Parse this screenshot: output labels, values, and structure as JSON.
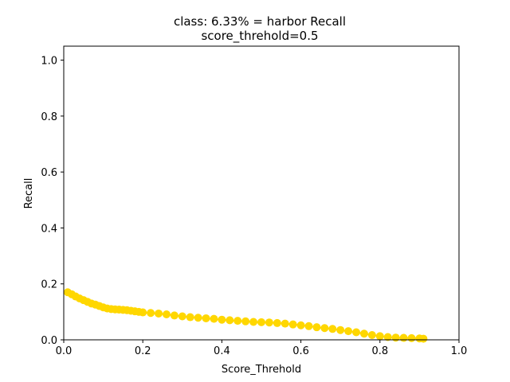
{
  "chart_data": {
    "type": "line",
    "title": "class: 6.33% = harbor Recall",
    "subtitle": "score_threhold=0.5",
    "xlabel": "Score_Threhold",
    "ylabel": "Recall",
    "xlim": [
      0.0,
      1.0
    ],
    "ylim": [
      0.0,
      1.05
    ],
    "xticks": [
      "0.0",
      "0.2",
      "0.4",
      "0.6",
      "0.8",
      "1.0"
    ],
    "yticks": [
      "0.0",
      "0.2",
      "0.4",
      "0.6",
      "0.8",
      "1.0"
    ],
    "grid": false,
    "legend": "none",
    "series_color": "#ffd700",
    "series": [
      {
        "x": [
          0.01,
          0.02,
          0.03,
          0.04,
          0.05,
          0.06,
          0.07,
          0.08,
          0.09,
          0.1,
          0.11,
          0.12,
          0.13,
          0.14,
          0.15,
          0.16,
          0.17,
          0.18,
          0.19,
          0.2,
          0.22,
          0.24,
          0.26,
          0.28,
          0.3,
          0.32,
          0.34,
          0.36,
          0.38,
          0.4,
          0.42,
          0.44,
          0.46,
          0.48,
          0.5,
          0.52,
          0.54,
          0.56,
          0.58,
          0.6,
          0.62,
          0.64,
          0.66,
          0.68,
          0.7,
          0.72,
          0.74,
          0.76,
          0.78,
          0.8,
          0.82,
          0.84,
          0.86,
          0.88,
          0.9,
          0.91
        ],
        "y": [
          0.17,
          0.163,
          0.155,
          0.148,
          0.142,
          0.136,
          0.13,
          0.126,
          0.121,
          0.116,
          0.112,
          0.11,
          0.109,
          0.108,
          0.107,
          0.106,
          0.104,
          0.102,
          0.1,
          0.098,
          0.096,
          0.094,
          0.091,
          0.087,
          0.084,
          0.081,
          0.079,
          0.077,
          0.075,
          0.072,
          0.07,
          0.068,
          0.066,
          0.064,
          0.063,
          0.062,
          0.06,
          0.058,
          0.055,
          0.052,
          0.049,
          0.045,
          0.042,
          0.039,
          0.035,
          0.031,
          0.027,
          0.022,
          0.017,
          0.013,
          0.01,
          0.008,
          0.007,
          0.006,
          0.005,
          0.004
        ]
      }
    ]
  }
}
